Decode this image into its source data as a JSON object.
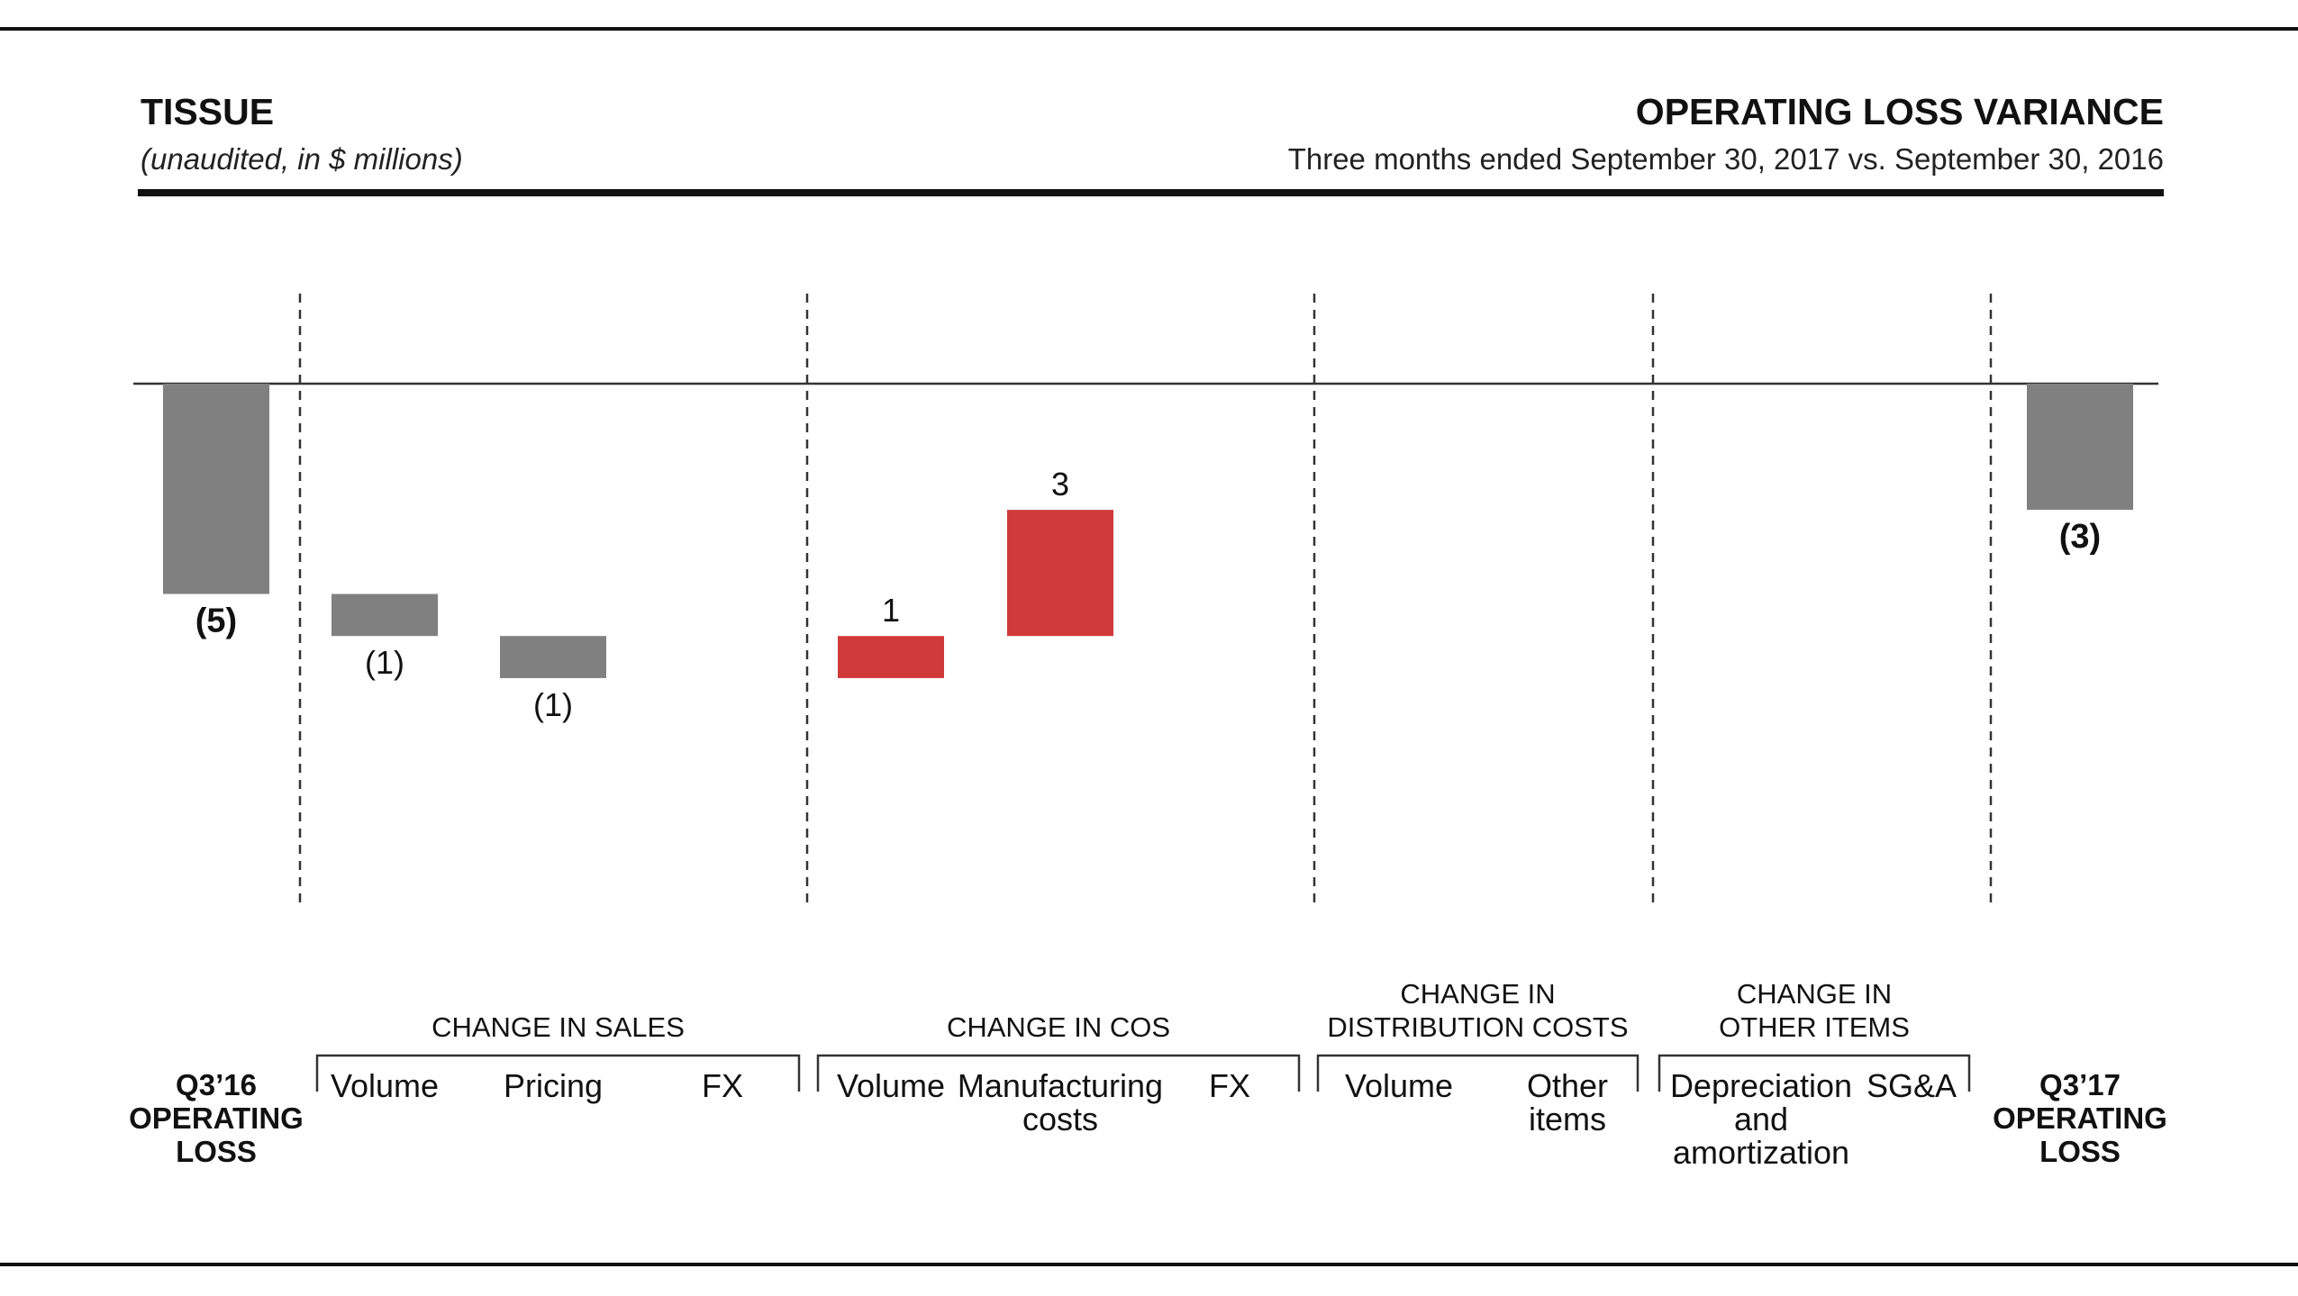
{
  "header": {
    "left_title": "TISSUE",
    "left_subtitle": "(unaudited, in $ millions)",
    "right_title": "OPERATING LOSS VARIANCE",
    "right_subtitle": "Three months ended September 30, 2017 vs. September 30, 2016"
  },
  "chart_data": {
    "type": "bar",
    "subtype": "waterfall",
    "title": "OPERATING LOSS VARIANCE",
    "subtitle": "Three months ended September 30, 2017 vs. September 30, 2016",
    "units": "(unaudited, in $ millions)",
    "baseline": 0,
    "ylim": [
      -12,
      2.5
    ],
    "grid": false,
    "legend": "none",
    "colors": {
      "total": "#808080",
      "negative": "#808080",
      "positive": "#d03a3a",
      "axis": "#333333",
      "divider": "#333333",
      "text": "#111111"
    },
    "bars": [
      {
        "category": "Q3'16 OPERATING LOSS",
        "label_lines": [
          "Q3’16",
          "OPERATING",
          "LOSS"
        ],
        "value": -5,
        "display": "(5)",
        "kind": "total",
        "bold": true,
        "slot": 0
      },
      {
        "category": "Volume",
        "label_lines": [
          "Volume"
        ],
        "value": -1,
        "display": "(1)",
        "kind": "delta",
        "slot": 1
      },
      {
        "category": "Pricing",
        "label_lines": [
          "Pricing"
        ],
        "value": -1,
        "display": "(1)",
        "kind": "delta",
        "slot": 2
      },
      {
        "category": "FX",
        "label_lines": [
          "FX"
        ],
        "value": 0,
        "display": "",
        "kind": "delta",
        "slot": 3
      },
      {
        "category": "Volume",
        "label_lines": [
          "Volume"
        ],
        "value": 1,
        "display": "1",
        "kind": "delta",
        "slot": 4
      },
      {
        "category": "Manufacturing costs",
        "label_lines": [
          "Manufacturing",
          "costs"
        ],
        "value": 3,
        "display": "3",
        "kind": "delta",
        "slot": 5
      },
      {
        "category": "FX",
        "label_lines": [
          "FX"
        ],
        "value": 0,
        "display": "",
        "kind": "delta",
        "slot": 6
      },
      {
        "category": "Volume",
        "label_lines": [
          "Volume"
        ],
        "value": 0,
        "display": "",
        "kind": "delta",
        "slot": 7
      },
      {
        "category": "Other items",
        "label_lines": [
          "Other",
          "items"
        ],
        "value": 0,
        "display": "",
        "kind": "delta",
        "slot": 8
      },
      {
        "category": "Depreciation and amortization",
        "label_lines": [
          "Depreciation",
          "and",
          "amortization"
        ],
        "value": 0,
        "display": "",
        "kind": "delta",
        "slot": 9
      },
      {
        "category": "SG&A",
        "label_lines": [
          "SG&A"
        ],
        "value": 0,
        "display": "",
        "kind": "delta",
        "slot": 10
      },
      {
        "category": "Q3'17 OPERATING LOSS",
        "label_lines": [
          "Q3’17",
          "OPERATING",
          "LOSS"
        ],
        "value": -3,
        "display": "(3)",
        "kind": "total",
        "bold": true,
        "slot": 11
      }
    ],
    "groups": [
      {
        "label_lines": [
          "CHANGE IN SALES"
        ],
        "first_slot": 1,
        "last_slot": 3
      },
      {
        "label_lines": [
          "CHANGE IN COS"
        ],
        "first_slot": 4,
        "last_slot": 6
      },
      {
        "label_lines": [
          "CHANGE IN",
          "DISTRIBUTION COSTS"
        ],
        "first_slot": 7,
        "last_slot": 8
      },
      {
        "label_lines": [
          "CHANGE IN",
          "OTHER ITEMS"
        ],
        "first_slot": 9,
        "last_slot": 10
      }
    ]
  }
}
